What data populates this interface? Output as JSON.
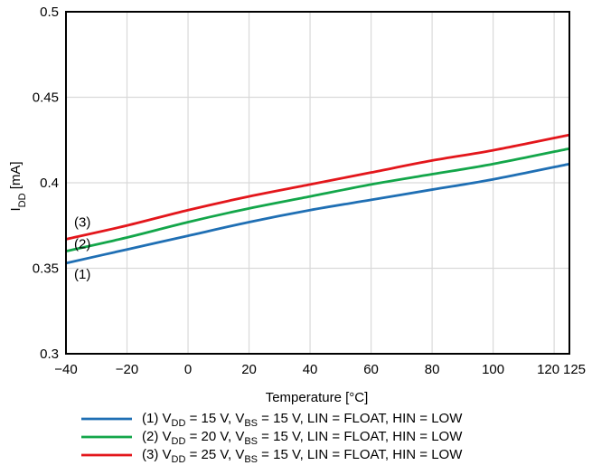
{
  "chart_data": {
    "type": "line",
    "title": "",
    "xlabel": "Temperature [°C]",
    "ylabel": {
      "main": "I",
      "sub": "DD",
      "unit": " [mA]"
    },
    "xlim": [
      -40,
      125
    ],
    "ylim": [
      0.3,
      0.5
    ],
    "xticks": [
      -40,
      -20,
      0,
      20,
      40,
      60,
      80,
      100,
      120,
      125
    ],
    "xtick_labels": [
      "−40",
      "−20",
      "0",
      "20",
      "40",
      "60",
      "80",
      "100",
      "120",
      "125"
    ],
    "yticks": [
      0.3,
      0.35,
      0.4,
      0.45,
      0.5
    ],
    "ytick_labels": [
      "0.3",
      "0.35",
      "0.4",
      "0.45",
      "0.5"
    ],
    "grid": true,
    "legend_position": "bottom",
    "x": [
      -40,
      -20,
      0,
      20,
      40,
      60,
      80,
      100,
      125
    ],
    "series": [
      {
        "label": "(1)",
        "color": "#1f6fb4",
        "values": [
          0.353,
          0.361,
          0.369,
          0.377,
          0.384,
          0.39,
          0.396,
          0.402,
          0.411
        ],
        "legend": [
          {
            "t": "(1) V"
          },
          {
            "t": "DD",
            "sub": true
          },
          {
            "t": " = 15 V, V"
          },
          {
            "t": "BS",
            "sub": true
          },
          {
            "t": " = 15 V, LIN = FLOAT, HIN = LOW"
          }
        ]
      },
      {
        "label": "(2)",
        "color": "#13a64a",
        "values": [
          0.36,
          0.368,
          0.377,
          0.385,
          0.392,
          0.399,
          0.405,
          0.411,
          0.42
        ],
        "legend": [
          {
            "t": "(2) V"
          },
          {
            "t": "DD",
            "sub": true
          },
          {
            "t": " = 20 V, V"
          },
          {
            "t": "BS",
            "sub": true
          },
          {
            "t": " = 15 V, LIN = FLOAT, HIN = LOW"
          }
        ]
      },
      {
        "label": "(3)",
        "color": "#e3161b",
        "values": [
          0.367,
          0.375,
          0.384,
          0.392,
          0.399,
          0.406,
          0.413,
          0.419,
          0.428
        ],
        "legend": [
          {
            "t": "(3) V"
          },
          {
            "t": "DD",
            "sub": true
          },
          {
            "t": " = 25 V, V"
          },
          {
            "t": "BS",
            "sub": true
          },
          {
            "t": " = 15 V, LIN = FLOAT, HIN = LOW"
          }
        ]
      }
    ]
  }
}
